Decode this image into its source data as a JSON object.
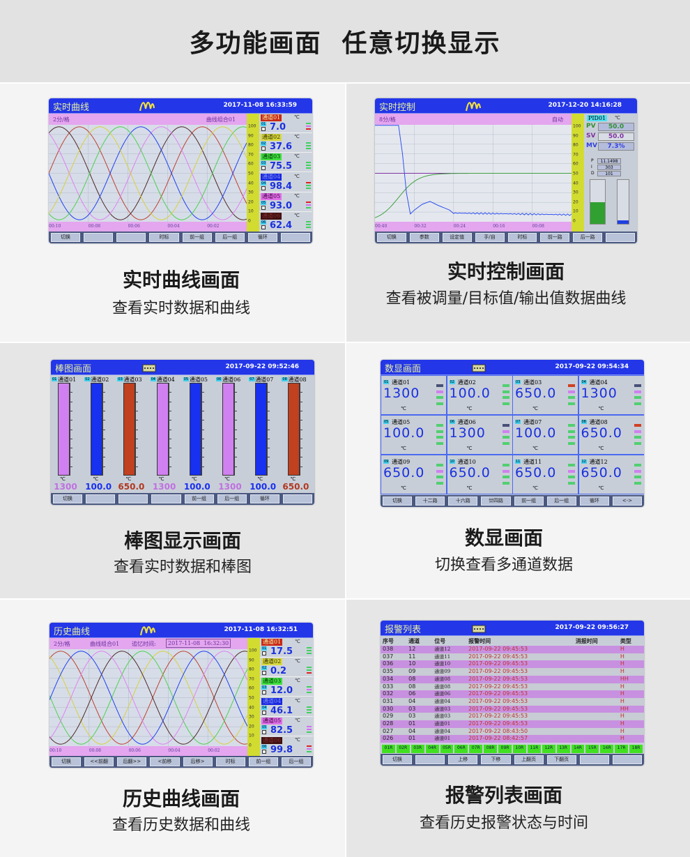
{
  "header": {
    "title": "多功能画面  任意切换显示"
  },
  "realtime_curve": {
    "caption": "实时曲线画面",
    "subcaption": "查看实时数据和曲线",
    "screen": {
      "title": "实时曲线",
      "logo": "wave-logo",
      "datetime": "2017-11-08 16:33:59",
      "scale_label": "2分/格",
      "group_label": "曲线组合01",
      "time_labels": [
        "00:10",
        "00:08",
        "00:06",
        "00:04",
        "00:02"
      ],
      "scale_ticks": [
        "100",
        "90",
        "80",
        "70",
        "60",
        "50",
        "40",
        "30",
        "20",
        "10",
        "0"
      ],
      "curve_colors": [
        "#c04030",
        "#502828",
        "#e080f0",
        "#2040f0",
        "#50d050",
        "#d8d040"
      ],
      "channels": [
        {
          "name": "通道01",
          "id": "01",
          "value": "7.0",
          "unit": "℃",
          "tag_bg": "#c82818",
          "tag_fg": "#f0f0a0",
          "indicators": [
            "#40d060",
            "#d070f0",
            "#e02020"
          ]
        },
        {
          "name": "通道02",
          "id": "02",
          "value": "37.6",
          "unit": "℃",
          "tag_bg": "#d8d840",
          "tag_fg": "#303000",
          "indicators": [
            "#40d060",
            "#40d060",
            "#40d060"
          ]
        },
        {
          "name": "通道03",
          "id": "03",
          "value": "75.5",
          "unit": "℃",
          "tag_bg": "#40e040",
          "tag_fg": "#003000",
          "indicators": [
            "#40d060",
            "#40d060",
            "#40d060"
          ]
        },
        {
          "name": "通道04",
          "id": "04",
          "value": "98.4",
          "unit": "℃",
          "tag_bg": "#1828e0",
          "tag_fg": "#8090f0",
          "indicators": [
            "#e02020",
            "#40d060",
            "#40d060"
          ]
        },
        {
          "name": "通道05",
          "id": "05",
          "value": "93.0",
          "unit": "℃",
          "tag_bg": "#e070e8",
          "tag_fg": "#400040",
          "indicators": [
            "#e02020",
            "#d070f0",
            "#40d060"
          ]
        },
        {
          "name": "通道06",
          "id": "06",
          "value": "62.4",
          "unit": "℃",
          "tag_bg": "#401010",
          "tag_fg": "#803030",
          "indicators": [
            "#40d060",
            "#40d060",
            "#40d060"
          ]
        }
      ],
      "buttons": [
        "切换",
        "",
        "",
        "时标",
        "前一组",
        "后一组",
        "循环",
        ""
      ]
    }
  },
  "realtime_control": {
    "caption": "实时控制画面",
    "subcaption": "查看被调量/目标值/输出值数据曲线",
    "screen": {
      "title": "实时控制",
      "logo": "wave-logo",
      "datetime": "2017-12-20 14:16:28",
      "scale_label": "8分/格",
      "mode_label": "自动",
      "time_labels": [
        "00:40",
        "00:32",
        "00:24",
        "00:16",
        "00:08"
      ],
      "scale_ticks": [
        "100",
        "90",
        "80",
        "70",
        "60",
        "50",
        "40",
        "30",
        "20",
        "10",
        "0"
      ],
      "pid_tag": "PID01",
      "unit": "℃",
      "pv": {
        "label": "PV",
        "value": "50.0",
        "color": "#309030"
      },
      "sv": {
        "label": "SV",
        "value": "50.0",
        "color": "#8030a0"
      },
      "mv": {
        "label": "MV",
        "value": "7.3%",
        "color": "#3040e0"
      },
      "params": [
        {
          "label": "P",
          "value": "11.1498"
        },
        {
          "label": "I",
          "value": "303"
        },
        {
          "label": "D",
          "value": "101"
        }
      ],
      "pv_gauge_fraction": 0.5,
      "mv_gauge_fraction": 0.073,
      "trace_colors": {
        "pv": "#3050f0",
        "sv": "#8030a0",
        "mv": "#40a040"
      },
      "buttons": [
        "切换",
        "参数",
        "设定值",
        "手/自",
        "时标",
        "前一路",
        "后一路",
        ""
      ]
    }
  },
  "bar_graph": {
    "caption": "棒图显示画面",
    "subcaption": "查看实时数据和棒图",
    "screen": {
      "title": "棒图画面",
      "logo": "keyboard-icon",
      "datetime": "2017-09-22 09:52:46",
      "channels": [
        {
          "id": "01",
          "name": "通道01",
          "value": "1300",
          "unit": "℃",
          "color": "#d080f0",
          "text": "#c070e0"
        },
        {
          "id": "02",
          "name": "通道02",
          "value": "100.0",
          "unit": "℃",
          "color": "#1830f0",
          "text": "#1830f0"
        },
        {
          "id": "03",
          "name": "通道03",
          "value": "650.0",
          "unit": "℃",
          "color": "#c04020",
          "text": "#b03820"
        },
        {
          "id": "04",
          "name": "通道04",
          "value": "1300",
          "unit": "℃",
          "color": "#d080f0",
          "text": "#c070e0"
        },
        {
          "id": "05",
          "name": "通道05",
          "value": "100.0",
          "unit": "℃",
          "color": "#1830f0",
          "text": "#1830f0"
        },
        {
          "id": "06",
          "name": "通道06",
          "value": "1300",
          "unit": "℃",
          "color": "#d080f0",
          "text": "#c070e0"
        },
        {
          "id": "07",
          "name": "通道07",
          "value": "100.0",
          "unit": "℃",
          "color": "#1830f0",
          "text": "#1830f0"
        },
        {
          "id": "08",
          "name": "通道08",
          "value": "650.0",
          "unit": "℃",
          "color": "#c04020",
          "text": "#b03820"
        }
      ],
      "buttons": [
        "切换",
        "",
        "",
        "",
        "前一组",
        "后一组",
        "循环",
        ""
      ]
    }
  },
  "digital": {
    "caption": "数显画面",
    "subcaption": "切换查看多通道数据",
    "screen": {
      "title": "数显画面",
      "logo": "keyboard-icon",
      "datetime": "2017-09-22 09:54:34",
      "cells": [
        {
          "id": "01",
          "name": "通道01",
          "value": "1300",
          "unit": "℃",
          "indicators": [
            "#485078",
            "#d080f0",
            "#50d070",
            "#50d070"
          ]
        },
        {
          "id": "02",
          "name": "通道02",
          "value": "100.0",
          "unit": "℃",
          "indicators": [
            "#50d070",
            "#50d070",
            "#50d070",
            "#50d070"
          ]
        },
        {
          "id": "03",
          "name": "通道03",
          "value": "650.0",
          "unit": "℃",
          "indicators": [
            "#d04020",
            "#d080f0",
            "#50d070",
            "#50d070"
          ]
        },
        {
          "id": "04",
          "name": "通道04",
          "value": "1300",
          "unit": "℃",
          "indicators": [
            "#485078",
            "#d080f0",
            "#50d070",
            "#50d070"
          ]
        },
        {
          "id": "05",
          "name": "通道05",
          "value": "100.0",
          "unit": "℃",
          "indicators": [
            "#50d070",
            "#50d070",
            "#50d070",
            "#50d070"
          ]
        },
        {
          "id": "06",
          "name": "通道06",
          "value": "1300",
          "unit": "℃",
          "indicators": [
            "#485078",
            "#d080f0",
            "#50d070",
            "#50d070"
          ]
        },
        {
          "id": "07",
          "name": "通道07",
          "value": "100.0",
          "unit": "℃",
          "indicators": [
            "#50d070",
            "#50d070",
            "#50d070",
            "#50d070"
          ]
        },
        {
          "id": "08",
          "name": "通道08",
          "value": "650.0",
          "unit": "℃",
          "indicators": [
            "#d04020",
            "#d080f0",
            "#50d070",
            "#50d070"
          ]
        },
        {
          "id": "09",
          "name": "通道09",
          "value": "650.0",
          "unit": "℃",
          "indicators": [
            "#50d070",
            "#d080f0",
            "#50d070",
            "#50d070"
          ]
        },
        {
          "id": "10",
          "name": "通道10",
          "value": "650.0",
          "unit": "℃",
          "indicators": [
            "#50d070",
            "#d080f0",
            "#50d070",
            "#50d070"
          ]
        },
        {
          "id": "11",
          "name": "通道11",
          "value": "650.0",
          "unit": "℃",
          "indicators": [
            "#50d070",
            "#d080f0",
            "#50d070",
            "#50d070"
          ]
        },
        {
          "id": "12",
          "name": "通道12",
          "value": "650.0",
          "unit": "℃",
          "indicators": [
            "#50d070",
            "#d080f0",
            "#50d070",
            "#50d070"
          ]
        }
      ],
      "buttons": [
        "切换",
        "十二路",
        "十六路",
        "廿四路",
        "前一组",
        "后一组",
        "循环",
        "<->"
      ]
    }
  },
  "history_curve": {
    "caption": "历史曲线画面",
    "subcaption": "查看历史数据和曲线",
    "screen": {
      "title": "历史曲线",
      "logo": "wave-logo",
      "datetime": "2017-11-08 16:32:51",
      "scale_label": "2分/格",
      "group_label": "曲线组合01",
      "recall_label": "追忆时间:",
      "recall_time": "2017-11-08  16:32:30",
      "time_labels": [
        "00:10",
        "00:08",
        "00:06",
        "00:04",
        "00:02"
      ],
      "scale_ticks": [
        "100",
        "90",
        "80",
        "70",
        "60",
        "50",
        "40",
        "30",
        "20",
        "10",
        "0"
      ],
      "curve_colors": [
        "#c04030",
        "#d8d040",
        "#50d050",
        "#502828",
        "#e080f0",
        "#2040f0"
      ],
      "channels": [
        {
          "name": "通道01",
          "id": "01",
          "value": "17.5",
          "unit": "℃",
          "tag_bg": "#c82818",
          "tag_fg": "#f0f0a0",
          "indicators": [
            "#40d060",
            "#40d060",
            "#40d060"
          ]
        },
        {
          "name": "通道02",
          "id": "02",
          "value": "0.2",
          "unit": "℃",
          "tag_bg": "#d8d840",
          "tag_fg": "#303000",
          "indicators": [
            "#40d060",
            "#40d060",
            "#e02020"
          ]
        },
        {
          "name": "通道03",
          "id": "03",
          "value": "12.0",
          "unit": "℃",
          "tag_bg": "#40e040",
          "tag_fg": "#003000",
          "indicators": [
            "#40d060",
            "#d070f0",
            "#40d060"
          ]
        },
        {
          "name": "通道04",
          "id": "04",
          "value": "46.1",
          "unit": "℃",
          "tag_bg": "#1828e0",
          "tag_fg": "#8090f0",
          "indicators": [
            "#40d060",
            "#40d060",
            "#40d060"
          ]
        },
        {
          "name": "通道05",
          "id": "05",
          "value": "82.5",
          "unit": "℃",
          "tag_bg": "#e070e8",
          "tag_fg": "#400040",
          "indicators": [
            "#d070f0",
            "#d070f0",
            "#40d060"
          ]
        },
        {
          "name": "通道06",
          "id": "06",
          "value": "99.8",
          "unit": "℃",
          "tag_bg": "#401010",
          "tag_fg": "#803030",
          "indicators": [
            "#e02020",
            "#d070f0",
            "#40d060"
          ]
        }
      ],
      "buttons": [
        "切换",
        "<<前翻",
        "后翻>>",
        "<前移",
        "后移>",
        "时标",
        "前一组",
        "后一组"
      ]
    }
  },
  "alarm_list": {
    "caption": "报警列表画面",
    "subcaption": "查看历史报警状态与时间",
    "screen": {
      "title": "报警列表",
      "logo": "keyboard-icon",
      "datetime": "2017-09-22 09:56:27",
      "columns": [
        "序号",
        "通道",
        "位号",
        "报警时间",
        "消报时间",
        "类型"
      ],
      "rows": [
        [
          "038",
          "12",
          "通道12",
          "2017-09-22 09:45:53",
          "",
          "H"
        ],
        [
          "037",
          "11",
          "通道11",
          "2017-09-22 09:45:53",
          "",
          "H"
        ],
        [
          "036",
          "10",
          "通道10",
          "2017-09-22 09:45:53",
          "",
          "H"
        ],
        [
          "035",
          "09",
          "通道09",
          "2017-09-22 09:45:53",
          "",
          "H"
        ],
        [
          "034",
          "08",
          "通道08",
          "2017-09-22 09:45:53",
          "",
          "HH"
        ],
        [
          "033",
          "08",
          "通道08",
          "2017-09-22 09:45:53",
          "",
          "H"
        ],
        [
          "032",
          "06",
          "通道06",
          "2017-09-22 09:45:53",
          "",
          "H"
        ],
        [
          "031",
          "04",
          "通道04",
          "2017-09-22 09:45:53",
          "",
          "H"
        ],
        [
          "030",
          "03",
          "通道03",
          "2017-09-22 09:45:53",
          "",
          "HH"
        ],
        [
          "029",
          "03",
          "通道03",
          "2017-09-22 09:45:53",
          "",
          "H"
        ],
        [
          "028",
          "01",
          "通道01",
          "2017-09-22 09:45:53",
          "",
          "H"
        ],
        [
          "027",
          "04",
          "通道04",
          "2017-09-22 08:43:50",
          "",
          "H"
        ],
        [
          "026",
          "01",
          "通道01",
          "2017-09-22 08:42:57",
          "",
          "H"
        ]
      ],
      "relays": [
        "01R",
        "02R",
        "03R",
        "04R",
        "05R",
        "06R",
        "07R",
        "08R",
        "09R",
        "10R",
        "11R",
        "12R",
        "13R",
        "14R",
        "15R",
        "16R",
        "17R",
        "18R"
      ],
      "buttons": [
        "切换",
        "",
        "上移",
        "下移",
        "上翻页",
        "下翻页",
        "",
        ""
      ]
    }
  }
}
